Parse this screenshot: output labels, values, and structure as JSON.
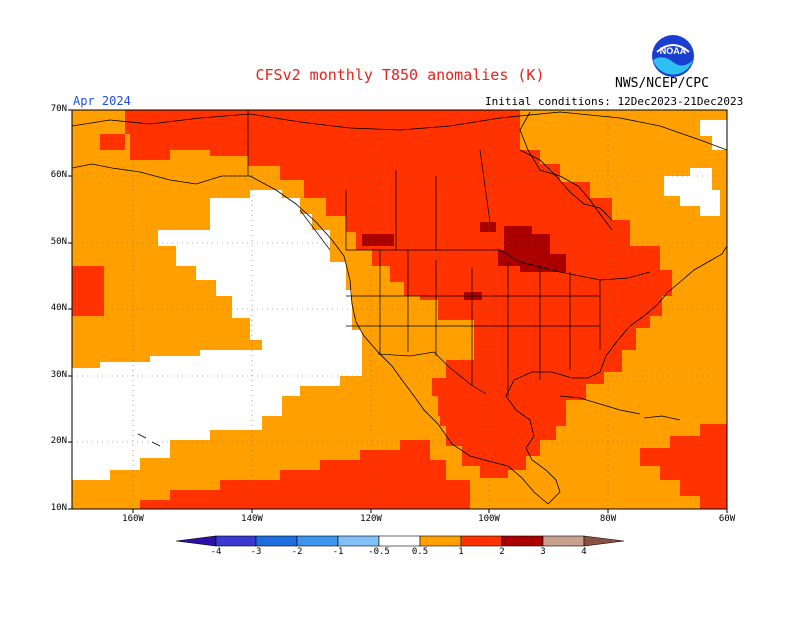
{
  "header": {
    "title": "CFSv2 monthly T850 anomalies (K)",
    "agency": "NWS/NCEP/CPC",
    "valid_month": "Apr 2024",
    "initial_conditions": "Initial conditions: 12Dec2023-21Dec2023",
    "logo_text": "NOAA"
  },
  "map": {
    "lat_labels": [
      "70N",
      "60N",
      "50N",
      "40N",
      "30N",
      "20N",
      "10N"
    ],
    "lon_labels": [
      "160W",
      "140W",
      "120W",
      "100W",
      "80W",
      "60W"
    ],
    "colors": {
      "white": "#ffffff",
      "light_orange": "#ffa000",
      "orange_red": "#ff3200",
      "dark_red": "#aa0000",
      "border": "#000000"
    }
  },
  "colorbar": {
    "labels": [
      "-4",
      "-3",
      "-2",
      "-1",
      "-0.5",
      "0.5",
      "1",
      "2",
      "3",
      "4"
    ],
    "colors": [
      "#2d10a8",
      "#3a3ad0",
      "#1e6ee0",
      "#3c96f0",
      "#82c0fa",
      "#ffffff",
      "#ffa000",
      "#ff3200",
      "#aa0000",
      "#c8a090",
      "#8a5040"
    ]
  }
}
